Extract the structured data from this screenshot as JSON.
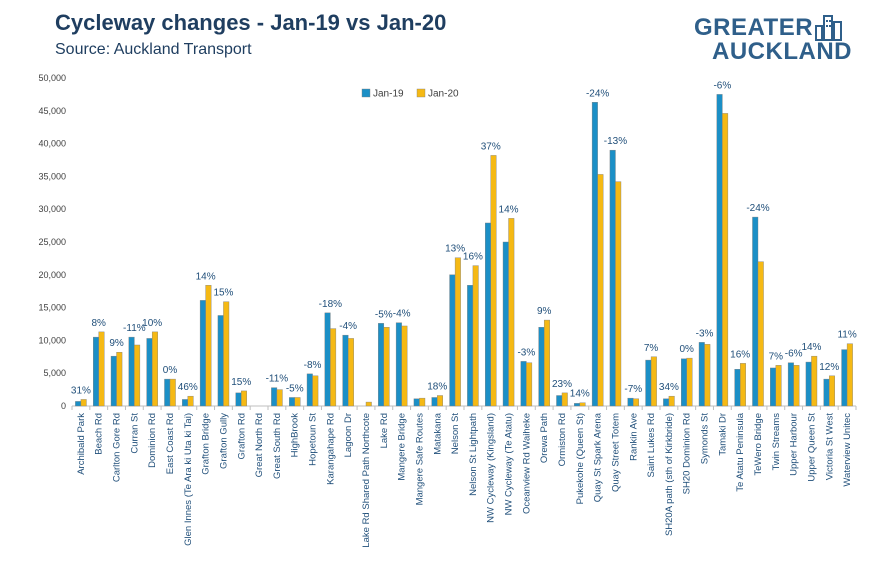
{
  "header": {
    "title": "Cycleway changes - Jan-19 vs Jan-20",
    "subtitle": "Source: Auckland Transport"
  },
  "logo": {
    "line1": "GREATER",
    "line2": "AUCKLAND",
    "icon": "city-skyline-icon"
  },
  "colors": {
    "jan19": "#1b8fc6",
    "jan20": "#f5b914",
    "text": "#1f3e60",
    "axis": "#bfbfbf"
  },
  "chart_data": {
    "type": "bar",
    "title": "Cycleway changes - Jan-19 vs Jan-20",
    "subtitle": "Source: Auckland Transport",
    "ylim": [
      0,
      50000
    ],
    "yticks": [
      "0",
      "5,000",
      "10,000",
      "15,000",
      "20,000",
      "25,000",
      "30,000",
      "35,000",
      "40,000",
      "45,000",
      "50,000"
    ],
    "legend_position": "top-center",
    "grid": false,
    "categories": [
      "Archibald Park",
      "Beach Rd",
      "Carlton Gore Rd",
      "Curran St",
      "Dominion Rd",
      "East Coast Rd",
      "Glen Innes (Te Ara ki Uta ki Tai)",
      "Grafton Bridge",
      "Grafton Gully",
      "Grafton Rd",
      "Great North Rd",
      "Great South Rd",
      "HighBrook",
      "Hopetoun St",
      "Karangahape Rd",
      "Lagoon Dr",
      "Lake Rd Shared Path Northcote",
      "Lake Rd",
      "Mangere Bridge",
      "Mangere Safe Routes",
      "Matakana",
      "Nelson St",
      "Nelson St Lightpath",
      "NW Cycleway (Kingsland)",
      "NW Cycleway (Te Atatu)",
      "Oceanview Rd Waiheke",
      "Orewa Path",
      "Ormiston Rd",
      "Pukekohe (Queen St)",
      "Quay St Spark Arena",
      "Quay Street Totem",
      "Rankin Ave",
      "Saint Lukes Rd",
      "SH20A path (sth of Kirkbride)",
      "SH20 Dominion Rd",
      "Symonds St",
      "Tamaki Dr",
      "Te Atatu Peninsula",
      "TeWero Bridge",
      "Twin Streams",
      "Upper Harbour",
      "Upper Queen St",
      "Victoria St West",
      "Waterview Unitec"
    ],
    "series": [
      {
        "name": "Jan-19",
        "color": "#1b8fc6",
        "values": [
          700,
          10500,
          7600,
          10500,
          10300,
          4100,
          1000,
          16100,
          13800,
          2000,
          0,
          2800,
          1300,
          4900,
          14200,
          10800,
          0,
          12600,
          12700,
          1100,
          1300,
          20000,
          18400,
          27900,
          25000,
          6800,
          12000,
          1600,
          400,
          46300,
          39000,
          1200,
          7000,
          1100,
          7200,
          9700,
          47500,
          5600,
          28800,
          5800,
          6600,
          6700,
          4100,
          8600
        ]
      },
      {
        "name": "Jan-20",
        "color": "#f5b914",
        "values": [
          1000,
          11300,
          8200,
          9300,
          11300,
          4100,
          1500,
          18400,
          15900,
          2300,
          0,
          2500,
          1300,
          4600,
          11800,
          10300,
          600,
          12000,
          12200,
          1200,
          1600,
          22600,
          21400,
          38200,
          28600,
          6600,
          13100,
          2000,
          500,
          35300,
          34200,
          1100,
          7500,
          1500,
          7300,
          9400,
          44600,
          6500,
          22000,
          6200,
          6200,
          7600,
          4600,
          9500
        ]
      }
    ],
    "data_labels": [
      "31%",
      "8%",
      "9%",
      "-11%",
      "10%",
      "0%",
      "46%",
      "14%",
      "15%",
      "15%",
      "",
      "-11%",
      "-5%",
      "-8%",
      "-18%",
      "-4%",
      "",
      "-5%",
      "-4%",
      "",
      "18%",
      "13%",
      "16%",
      "37%",
      "14%",
      "-3%",
      "9%",
      "23%",
      "14%",
      "-24%",
      "-13%",
      "-7%",
      "7%",
      "34%",
      "0%",
      "-3%",
      "-6%",
      "16%",
      "-24%",
      "7%",
      "-6%",
      "14%",
      "12%",
      "11%"
    ]
  }
}
